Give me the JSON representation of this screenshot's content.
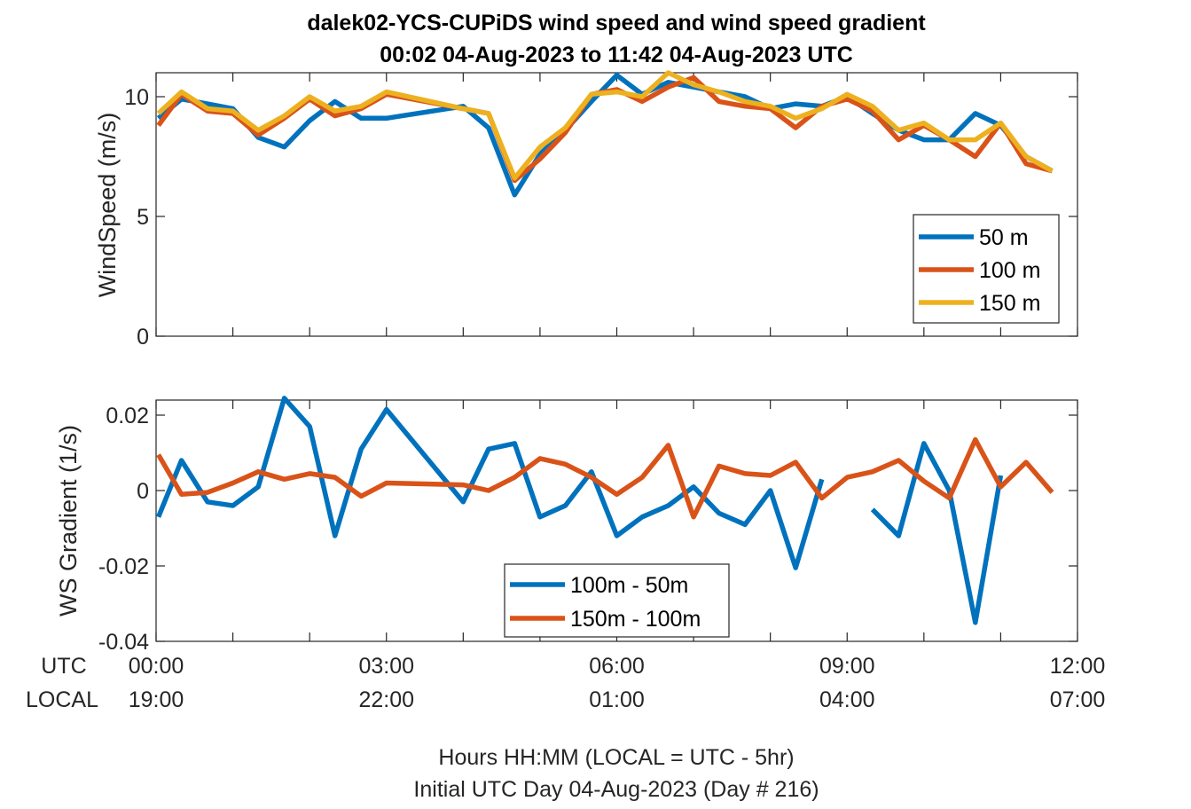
{
  "title_line1": "dalek02-YCS-CUPiDS  wind speed and wind speed gradient",
  "title_line2": "00:02 04-Aug-2023 to 11:42 04-Aug-2023  UTC",
  "footer_line1": "Hours HH:MM  (LOCAL = UTC - 5hr)",
  "footer_line2": "Initial UTC Day 04-Aug-2023 (Day # 216)",
  "row_labels": {
    "utc": "UTC",
    "local": "LOCAL"
  },
  "x_ticks_utc": [
    "00:00",
    "03:00",
    "06:00",
    "09:00",
    "12:00"
  ],
  "x_ticks_local": [
    "19:00",
    "22:00",
    "01:00",
    "04:00",
    "07:00"
  ],
  "chart_data": [
    {
      "type": "line",
      "ylabel": "WindSpeed (m/s)",
      "xlim": [
        0,
        12
      ],
      "ylim": [
        0,
        11
      ],
      "yticks": [
        0,
        5,
        10
      ],
      "ytick_labels": [
        "0",
        "5",
        "10"
      ],
      "legend_placement": "lower-right",
      "x": [
        0.03,
        0.33,
        0.67,
        1.0,
        1.33,
        1.67,
        2.0,
        2.33,
        2.67,
        3.0,
        4.0,
        4.33,
        4.67,
        5.0,
        5.33,
        5.67,
        6.0,
        6.33,
        6.67,
        7.0,
        7.33,
        7.67,
        8.0,
        8.33,
        8.67,
        9.0,
        9.33,
        9.67,
        10.0,
        10.33,
        10.67,
        11.0,
        11.33,
        11.67
      ],
      "series": [
        {
          "name": "50 m",
          "color": "#0072BD",
          "values": [
            9.1,
            9.9,
            9.7,
            9.5,
            8.3,
            7.9,
            9.0,
            9.8,
            9.1,
            9.1,
            9.6,
            8.7,
            5.9,
            7.6,
            8.6,
            9.8,
            10.9,
            10.1,
            10.6,
            10.4,
            10.2,
            10.0,
            9.5,
            9.7,
            9.6,
            10.0,
            9.3,
            8.6,
            8.2,
            8.2,
            9.3,
            8.8,
            7.5,
            6.9
          ]
        },
        {
          "name": "100 m",
          "color": "#D95319",
          "values": [
            8.8,
            10.1,
            9.4,
            9.3,
            8.4,
            9.1,
            9.9,
            9.2,
            9.5,
            10.1,
            9.5,
            9.3,
            6.5,
            7.4,
            8.5,
            10.1,
            10.3,
            9.8,
            10.4,
            10.8,
            9.8,
            9.6,
            9.5,
            8.7,
            9.6,
            9.9,
            9.4,
            8.2,
            8.8,
            8.2,
            7.5,
            8.9,
            7.2,
            6.9
          ]
        },
        {
          "name": "150 m",
          "color": "#EDB120",
          "values": [
            9.3,
            10.2,
            9.5,
            9.4,
            8.6,
            9.2,
            10.0,
            9.4,
            9.6,
            10.2,
            9.5,
            9.3,
            6.6,
            7.9,
            8.7,
            10.1,
            10.2,
            10.0,
            11.0,
            10.5,
            10.2,
            9.8,
            9.6,
            9.1,
            9.5,
            10.1,
            9.6,
            8.6,
            8.9,
            8.2,
            8.2,
            8.9,
            7.5,
            6.9
          ]
        }
      ]
    },
    {
      "type": "line",
      "ylabel": "WS Gradient (1/s)",
      "xlim": [
        0,
        12
      ],
      "ylim": [
        -0.04,
        0.024
      ],
      "yticks": [
        -0.04,
        -0.02,
        0,
        0.02
      ],
      "ytick_labels": [
        "-0.04",
        "-0.02",
        "0",
        "0.02"
      ],
      "legend_placement": "bottom-center",
      "series": [
        {
          "name": "100m - 50m",
          "color": "#0072BD",
          "x": [
            0.03,
            0.33,
            0.67,
            1.0,
            1.33,
            1.67,
            2.0,
            2.33,
            2.67,
            3.0,
            4.0,
            4.33,
            4.67,
            5.0,
            5.33,
            5.67,
            6.0,
            6.33,
            6.67,
            7.0,
            7.33,
            7.67,
            8.0,
            8.33,
            8.67,
            null,
            9.33,
            9.67,
            10.0,
            10.33,
            10.67,
            11.0
          ],
          "values": [
            -0.007,
            0.008,
            -0.003,
            -0.004,
            0.001,
            0.0245,
            0.017,
            -0.012,
            0.011,
            0.0215,
            -0.003,
            0.011,
            0.0125,
            -0.007,
            -0.004,
            0.005,
            -0.012,
            -0.007,
            -0.004,
            0.001,
            -0.006,
            -0.009,
            0.0,
            -0.0205,
            0.003,
            null,
            -0.005,
            -0.012,
            0.0125,
            0.0,
            -0.035,
            0.004
          ]
        },
        {
          "name": "150m - 100m",
          "color": "#D95319",
          "x": [
            0.03,
            0.33,
            0.67,
            1.0,
            1.33,
            1.67,
            2.0,
            2.33,
            2.67,
            3.0,
            4.0,
            4.33,
            4.67,
            5.0,
            5.33,
            5.67,
            6.0,
            6.33,
            6.67,
            7.0,
            7.33,
            7.67,
            8.0,
            8.33,
            8.67,
            9.0,
            9.33,
            9.67,
            10.0,
            10.33,
            10.67,
            11.0,
            11.33,
            11.67
          ],
          "values": [
            0.0095,
            -0.001,
            -0.0005,
            0.002,
            0.005,
            0.003,
            0.0045,
            0.0035,
            -0.0015,
            0.002,
            0.0015,
            0.0,
            0.0035,
            0.0085,
            0.007,
            0.0035,
            -0.001,
            0.0035,
            0.012,
            -0.007,
            0.0065,
            0.0045,
            0.004,
            0.0075,
            -0.002,
            0.0035,
            0.005,
            0.008,
            0.0025,
            -0.002,
            0.0135,
            0.001,
            0.0075,
            -0.0005
          ]
        }
      ]
    }
  ]
}
